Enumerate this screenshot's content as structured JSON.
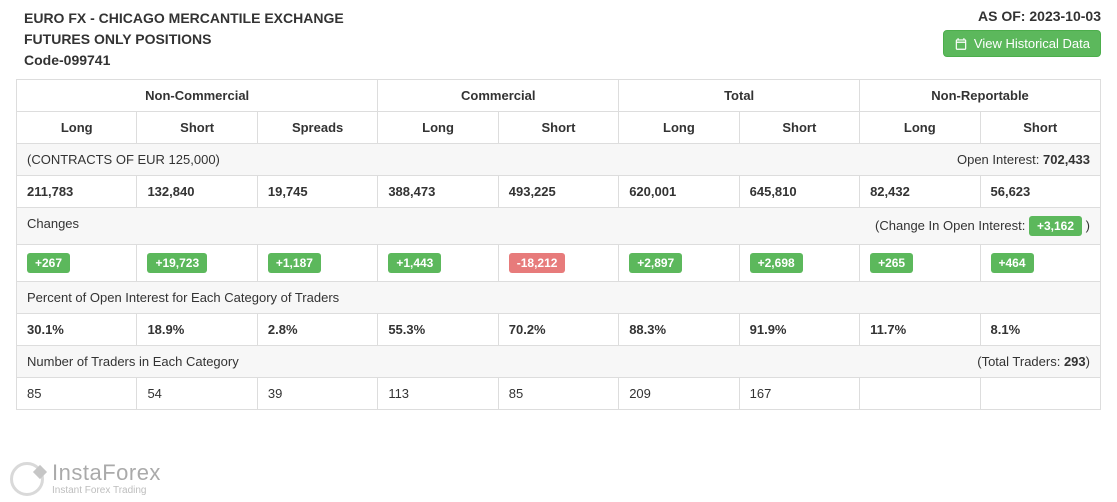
{
  "header": {
    "title_line1": "EURO FX - CHICAGO MERCANTILE EXCHANGE",
    "title_line2": "FUTURES ONLY POSITIONS",
    "title_line3": "Code-099741",
    "asof_label": "AS OF:",
    "asof_date": "2023-10-03",
    "historical_btn": "View Historical Data"
  },
  "groups": [
    {
      "label": "Non-Commercial",
      "span": 3
    },
    {
      "label": "Commercial",
      "span": 2
    },
    {
      "label": "Total",
      "span": 2
    },
    {
      "label": "Non-Reportable",
      "span": 2
    }
  ],
  "columns": [
    "Long",
    "Short",
    "Spreads",
    "Long",
    "Short",
    "Long",
    "Short",
    "Long",
    "Short"
  ],
  "contracts_row": {
    "left": "(CONTRACTS OF EUR 125,000)",
    "right_label": "Open Interest:",
    "right_value": "702,433"
  },
  "positions": [
    "211,783",
    "132,840",
    "19,745",
    "388,473",
    "493,225",
    "620,001",
    "645,810",
    "82,432",
    "56,623"
  ],
  "changes_row": {
    "label": "Changes",
    "right_label": "(Change In Open Interest:",
    "right_value": "+3,162",
    "right_close": ")"
  },
  "changes": [
    {
      "v": "+267",
      "sign": "pos"
    },
    {
      "v": "+19,723",
      "sign": "pos"
    },
    {
      "v": "+1,187",
      "sign": "pos"
    },
    {
      "v": "+1,443",
      "sign": "pos"
    },
    {
      "v": "-18,212",
      "sign": "neg"
    },
    {
      "v": "+2,897",
      "sign": "pos"
    },
    {
      "v": "+2,698",
      "sign": "pos"
    },
    {
      "v": "+265",
      "sign": "pos"
    },
    {
      "v": "+464",
      "sign": "pos"
    }
  ],
  "pct_label": "Percent of Open Interest for Each Category of Traders",
  "pct": [
    "30.1%",
    "18.9%",
    "2.8%",
    "55.3%",
    "70.2%",
    "88.3%",
    "91.9%",
    "11.7%",
    "8.1%"
  ],
  "traders_row": {
    "label": "Number of Traders in Each Category",
    "right_label": "(Total Traders:",
    "right_value": "293",
    "right_close": ")"
  },
  "traders": [
    "85",
    "54",
    "39",
    "113",
    "85",
    "209",
    "167",
    "",
    ""
  ],
  "watermark": {
    "brand": "InstaForex",
    "sub": "Instant Forex Trading"
  },
  "colors": {
    "border": "#ddd",
    "gray_bg": "#f7f7f7",
    "pos": "#5cb85c",
    "neg": "#e77b7b",
    "btn": "#5cb85c"
  }
}
